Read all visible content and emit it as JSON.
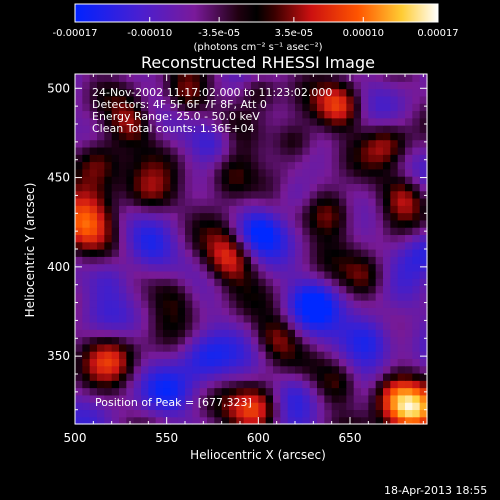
{
  "chart_data": {
    "type": "heatmap",
    "title": "Reconstructed RHESSI Image",
    "xlabel": "Heliocentric X (arcsec)",
    "ylabel": "Heliocentric Y (arcsec)",
    "xlim": [
      500,
      692
    ],
    "ylim": [
      312,
      508
    ],
    "xticks": [
      "500",
      "550",
      "600",
      "650"
    ],
    "xtick_values": [
      500,
      550,
      600,
      650
    ],
    "yticks": [
      "350",
      "400",
      "450",
      "500"
    ],
    "ytick_values": [
      350,
      400,
      450,
      500
    ],
    "colorbar": {
      "range": [
        -0.00017,
        0.00017
      ],
      "tick_labels": [
        "-0.00017",
        "-0.00010",
        "-3.5e-05",
        "3.5e-05",
        "0.00010",
        "0.00017"
      ],
      "tick_values": [
        -0.00017,
        -0.0001,
        -3.5e-05,
        3.5e-05,
        0.0001,
        0.00017
      ],
      "unit_label": "(photons cm⁻² s⁻¹ asec⁻²)"
    },
    "annotations": {
      "time_range": "24-Nov-2002 11:17:02.000 to 11:23:02.000",
      "detectors": "Detectors: 4F 5F 6F 7F 8F, Att 0",
      "energy": "Energy Range: 25.0 - 50.0 keV",
      "clean": "Clean     Total counts: 1.36E+04",
      "peak": "Position of Peak = [677,323]"
    },
    "peak_position": [
      677,
      323
    ],
    "colormap": [
      "#0000ff",
      "#5a18a8",
      "#8a1a9a",
      "#000000",
      "#cc1010",
      "#ff3300",
      "#ff9900",
      "#ffff40",
      "#ffffff"
    ],
    "image_grid_note": "intensity field sampled on a grid in data units"
  },
  "footer": {
    "date": "18-Apr-2013 18:55"
  }
}
